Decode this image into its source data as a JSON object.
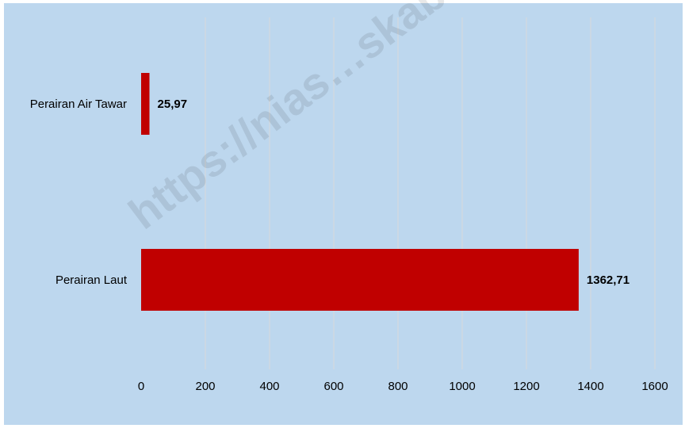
{
  "colors": {
    "background": "#bdd7ee",
    "bar": "#c00000",
    "grid": "#d9d9d9",
    "text": "#000000"
  },
  "watermark": "https://nias…skab.bps.go.id",
  "chart_data": {
    "type": "bar",
    "orientation": "horizontal",
    "categories": [
      "Perairan Air Tawar",
      "Perairan Laut"
    ],
    "values": [
      25.97,
      1362.71
    ],
    "data_labels": [
      "25,97",
      "1362,71"
    ],
    "xlim": [
      0,
      1600
    ],
    "xticks": [
      0,
      200,
      400,
      600,
      800,
      1000,
      1200,
      1400,
      1600
    ],
    "grid": true,
    "legend": "none"
  }
}
